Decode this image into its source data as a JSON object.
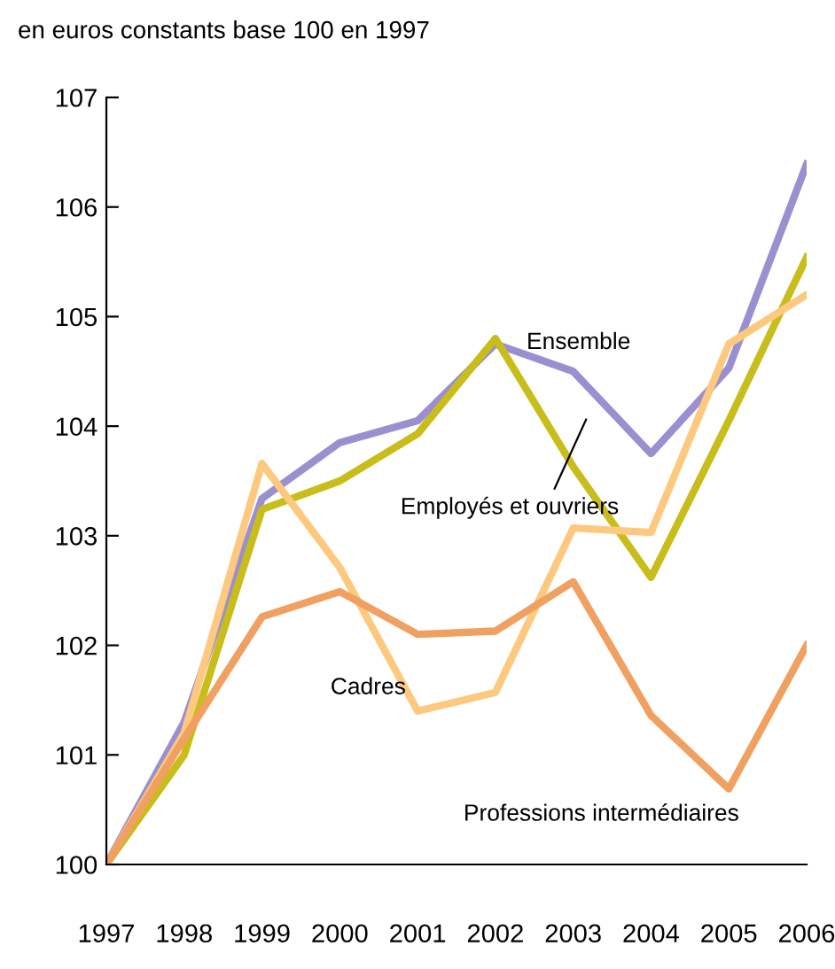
{
  "chart_data": {
    "type": "line",
    "ylabel": "en euros constants base 100 en 1997",
    "x": [
      1997,
      1998,
      1999,
      2000,
      2001,
      2002,
      2003,
      2004,
      2005,
      2006
    ],
    "xlim": [
      1997,
      2006
    ],
    "xticks": [
      1997,
      1998,
      1999,
      2000,
      2001,
      2002,
      2003,
      2004,
      2005,
      2006
    ],
    "ylim": [
      100,
      107
    ],
    "yticks": [
      100,
      101,
      102,
      103,
      104,
      105,
      106,
      107
    ],
    "grid": false,
    "legend": false,
    "marker": "none",
    "line_style": "solid",
    "series": [
      {
        "name": "Ensemble",
        "color": "#9b8fd0",
        "values": [
          100,
          101.3,
          103.34,
          103.85,
          104.05,
          104.75,
          104.5,
          103.75,
          104.53,
          106.39
        ]
      },
      {
        "name": "Employés et ouvriers",
        "color": "#c8bd1a",
        "values": [
          100,
          101.0,
          103.24,
          103.5,
          103.93,
          104.8,
          103.63,
          102.62,
          104.05,
          105.54
        ]
      },
      {
        "name": "Cadres",
        "color": "#fcc97f",
        "values": [
          100,
          101.2,
          103.66,
          102.71,
          101.4,
          101.57,
          103.07,
          103.03,
          104.75,
          105.2
        ]
      },
      {
        "name": "Professions intermédiaires",
        "color": "#f0a060",
        "values": [
          100,
          101.15,
          102.26,
          102.49,
          102.1,
          102.13,
          102.58,
          101.36,
          100.69,
          102.0
        ]
      }
    ]
  }
}
